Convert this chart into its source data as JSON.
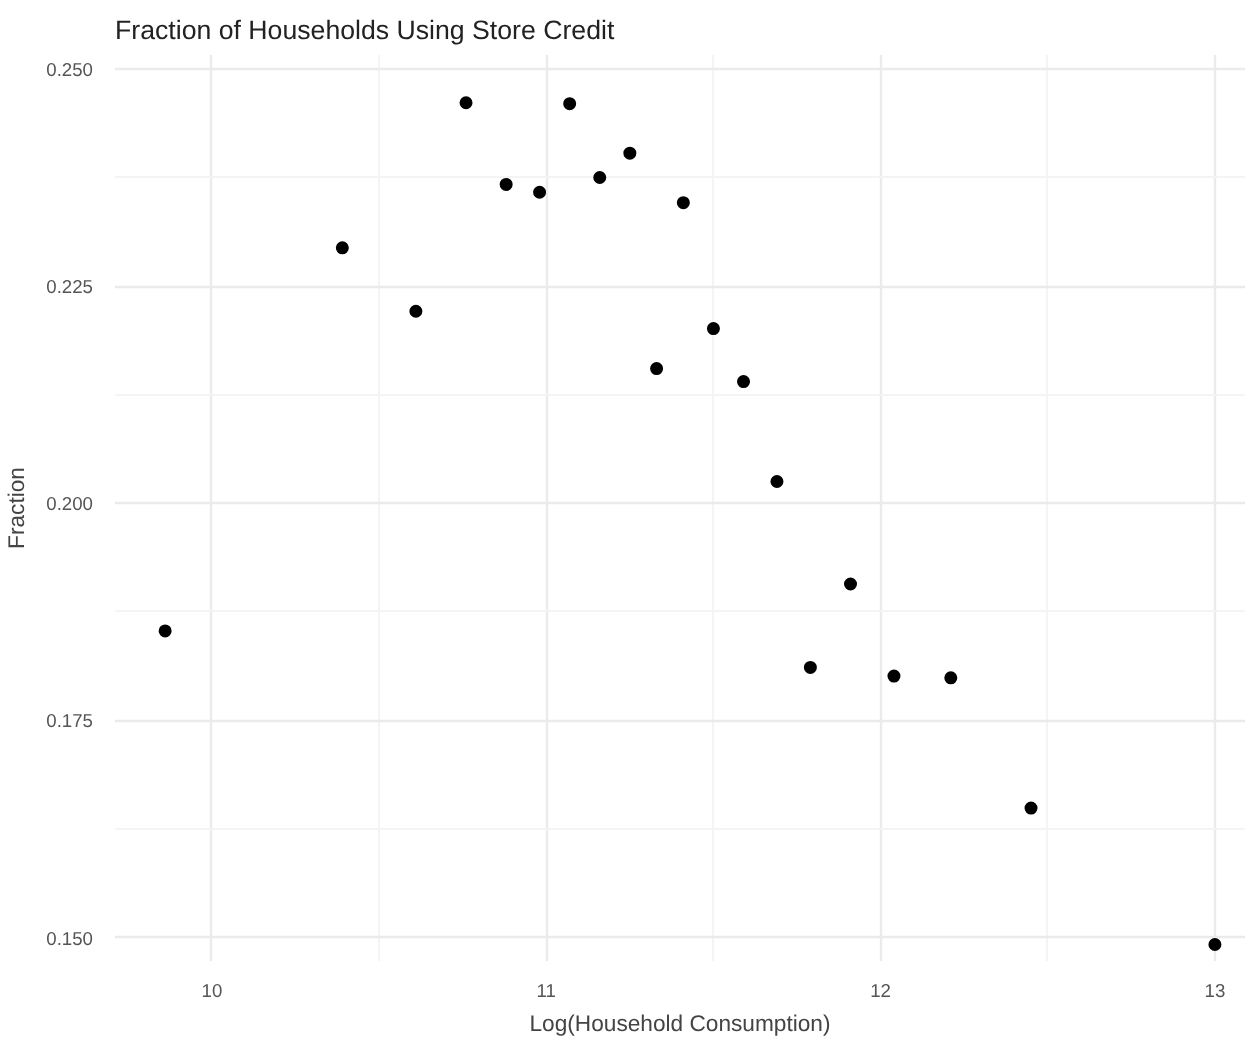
{
  "chart_data": {
    "type": "scatter",
    "title": "Fraction of Households Using Store Credit",
    "xlabel": "Log(Household Consumption)",
    "ylabel": "Fraction",
    "x": [
      9.86,
      10.39,
      10.61,
      10.76,
      10.88,
      10.98,
      11.07,
      11.16,
      11.25,
      11.33,
      11.41,
      11.5,
      11.59,
      11.69,
      11.79,
      11.91,
      12.04,
      12.21,
      12.45,
      13.0
    ],
    "series": [
      {
        "color": "#000000",
        "values": [
          0.1853,
          0.2294,
          0.2221,
          0.2461,
          0.2367,
          0.2358,
          0.246,
          0.2375,
          0.2403,
          0.2155,
          0.2346,
          0.2201,
          0.214,
          0.2025,
          0.1811,
          0.1907,
          0.1801,
          0.1799,
          0.1649,
          0.1492
        ]
      }
    ],
    "xlim": [
      9.71,
      13.09
    ],
    "ylim": [
      0.1473,
      0.2516
    ],
    "xticks": [
      10,
      11,
      12,
      13
    ],
    "yticks": [
      {
        "value": 0.15,
        "label": "0.150"
      },
      {
        "value": 0.175,
        "label": "0.175"
      },
      {
        "value": 0.2,
        "label": "0.200"
      },
      {
        "value": 0.225,
        "label": "0.225"
      },
      {
        "value": 0.25,
        "label": "0.250"
      }
    ],
    "grid": true,
    "marker": "circle"
  }
}
